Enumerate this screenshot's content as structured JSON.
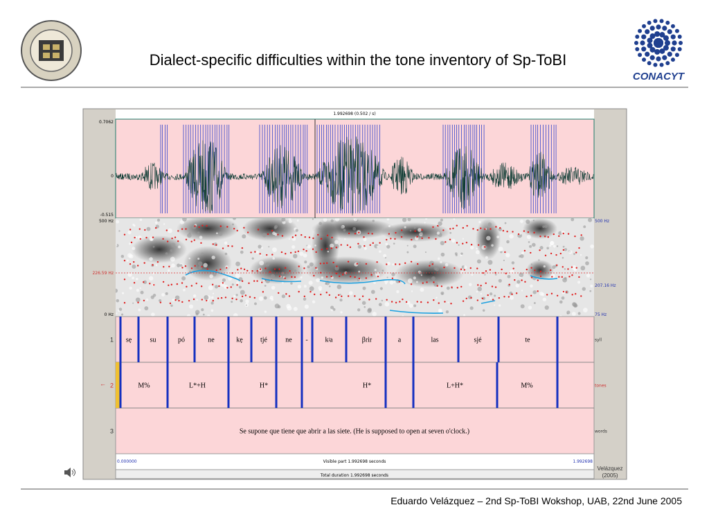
{
  "header": {
    "title": "Dialect-specific difficulties within the tone inventory of Sp-ToBI",
    "logo_text": "CONACYT"
  },
  "praat": {
    "cursor_label": "1.992698 (0.502 / s)",
    "wave_axis": {
      "top": "0.7062",
      "middle": "0",
      "bottom": "-0.515"
    },
    "spec_axis_left": {
      "top": "500 Hz",
      "cursor": "226.59 Hz",
      "bottom": "0 Hz"
    },
    "spec_axis_right": {
      "top": "500 Hz",
      "pitch": "207.16 Hz",
      "bottom": "75 Hz"
    },
    "selected_marker": "←",
    "tiers": [
      {
        "number": "1",
        "name": "syll",
        "intervals": [
          "sẹ",
          "su",
          "pó",
          "ne",
          "kẹ",
          "tjé",
          "ne",
          "-",
          "kʲa",
          "βrir",
          "a",
          "las",
          "sjé",
          "te"
        ]
      },
      {
        "number": "2",
        "name": "tones",
        "intervals": [
          "M%",
          "L*+H",
          "H*",
          "H*",
          "L+H*",
          "M%"
        ]
      },
      {
        "number": "3",
        "name": "words",
        "intervals": [
          "Se supone que tiene que abrir a las siete. (He is supposed to open at seven o'clock.)"
        ]
      }
    ],
    "time_start": "0.000000",
    "visible_part": "Visible part 1.992698 seconds",
    "time_end": "1.992698",
    "total_duration": "Total duration 1.992698 seconds"
  },
  "citation": {
    "author": "Velázquez",
    "year": "(2005)"
  },
  "footer": "Eduardo Velázquez – 2nd Sp-ToBI Wokshop, UAB, 22nd June 2005"
}
